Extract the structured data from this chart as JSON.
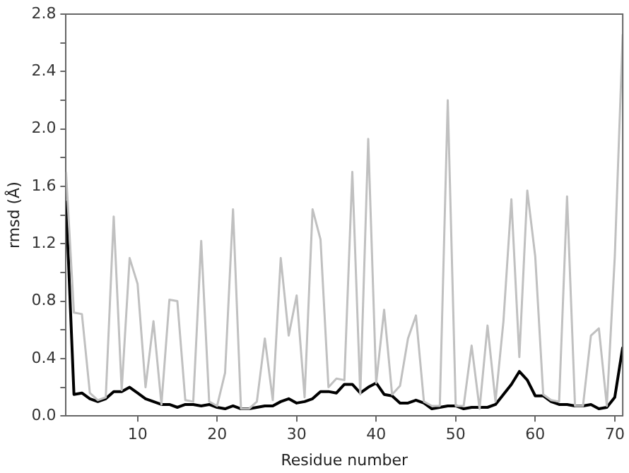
{
  "chart_data": {
    "type": "line",
    "xlabel": "Residue number",
    "ylabel": "rmsd (Å)",
    "x": [
      1,
      2,
      3,
      4,
      5,
      6,
      7,
      8,
      9,
      10,
      11,
      12,
      13,
      14,
      15,
      16,
      17,
      18,
      19,
      20,
      21,
      22,
      23,
      24,
      25,
      26,
      27,
      28,
      29,
      30,
      31,
      32,
      33,
      34,
      35,
      36,
      37,
      38,
      39,
      40,
      41,
      42,
      43,
      44,
      45,
      46,
      47,
      48,
      49,
      50,
      51,
      52,
      53,
      54,
      55,
      56,
      57,
      58,
      59,
      60,
      61,
      62,
      63,
      64,
      65,
      66,
      67,
      68,
      69,
      70,
      71
    ],
    "series": [
      {
        "color": "#c0c0c0",
        "values": [
          1.7,
          0.72,
          0.71,
          0.16,
          0.11,
          0.13,
          1.39,
          0.18,
          1.1,
          0.92,
          0.2,
          0.66,
          0.08,
          0.81,
          0.8,
          0.11,
          0.1,
          1.22,
          0.1,
          0.07,
          0.3,
          1.44,
          0.05,
          0.05,
          0.1,
          0.54,
          0.11,
          1.1,
          0.56,
          0.84,
          0.13,
          1.44,
          1.23,
          0.2,
          0.26,
          0.25,
          1.7,
          0.15,
          1.93,
          0.23,
          0.74,
          0.15,
          0.21,
          0.54,
          0.7,
          0.1,
          0.07,
          0.07,
          2.2,
          0.07,
          0.07,
          0.49,
          0.05,
          0.63,
          0.1,
          0.66,
          1.51,
          0.41,
          1.57,
          1.11,
          0.15,
          0.11,
          0.1,
          1.53,
          0.07,
          0.07,
          0.56,
          0.61,
          0.07,
          1.11,
          2.66
        ]
      },
      {
        "color": "#000000",
        "values": [
          1.5,
          0.15,
          0.16,
          0.12,
          0.1,
          0.12,
          0.17,
          0.17,
          0.2,
          0.16,
          0.12,
          0.1,
          0.08,
          0.08,
          0.06,
          0.08,
          0.08,
          0.07,
          0.08,
          0.06,
          0.05,
          0.07,
          0.05,
          0.05,
          0.06,
          0.07,
          0.07,
          0.1,
          0.12,
          0.09,
          0.1,
          0.12,
          0.17,
          0.17,
          0.16,
          0.22,
          0.22,
          0.16,
          0.2,
          0.23,
          0.15,
          0.14,
          0.09,
          0.09,
          0.11,
          0.09,
          0.05,
          0.06,
          0.07,
          0.07,
          0.05,
          0.06,
          0.06,
          0.06,
          0.08,
          0.15,
          0.22,
          0.31,
          0.25,
          0.14,
          0.14,
          0.1,
          0.08,
          0.08,
          0.07,
          0.07,
          0.08,
          0.05,
          0.06,
          0.13,
          0.48
        ]
      }
    ],
    "xlim": [
      1,
      71
    ],
    "xticks": [
      10,
      20,
      30,
      40,
      50,
      60,
      70
    ],
    "ylim": [
      0,
      2.8
    ],
    "yticks": [
      {
        "value": 0,
        "label": "0.0"
      },
      {
        "value": 0.2,
        "label": null
      },
      {
        "value": 0.4,
        "label": "0.4"
      },
      {
        "value": 0.6,
        "label": null
      },
      {
        "value": 0.8,
        "label": "0.8"
      },
      {
        "value": 1,
        "label": null
      },
      {
        "value": 1.2,
        "label": "1.2"
      },
      {
        "value": 1.4,
        "label": null
      },
      {
        "value": 1.6,
        "label": "1.6"
      },
      {
        "value": 1.8,
        "label": null
      },
      {
        "value": 2,
        "label": "2.0"
      },
      {
        "value": 2.2,
        "label": null
      },
      {
        "value": 2.4,
        "label": "2.4"
      },
      {
        "value": 2.6,
        "label": null
      },
      {
        "value": 2.8,
        "label": "2.8"
      }
    ],
    "grid": false,
    "legend": false,
    "marker": "none",
    "line_style": "solid"
  }
}
